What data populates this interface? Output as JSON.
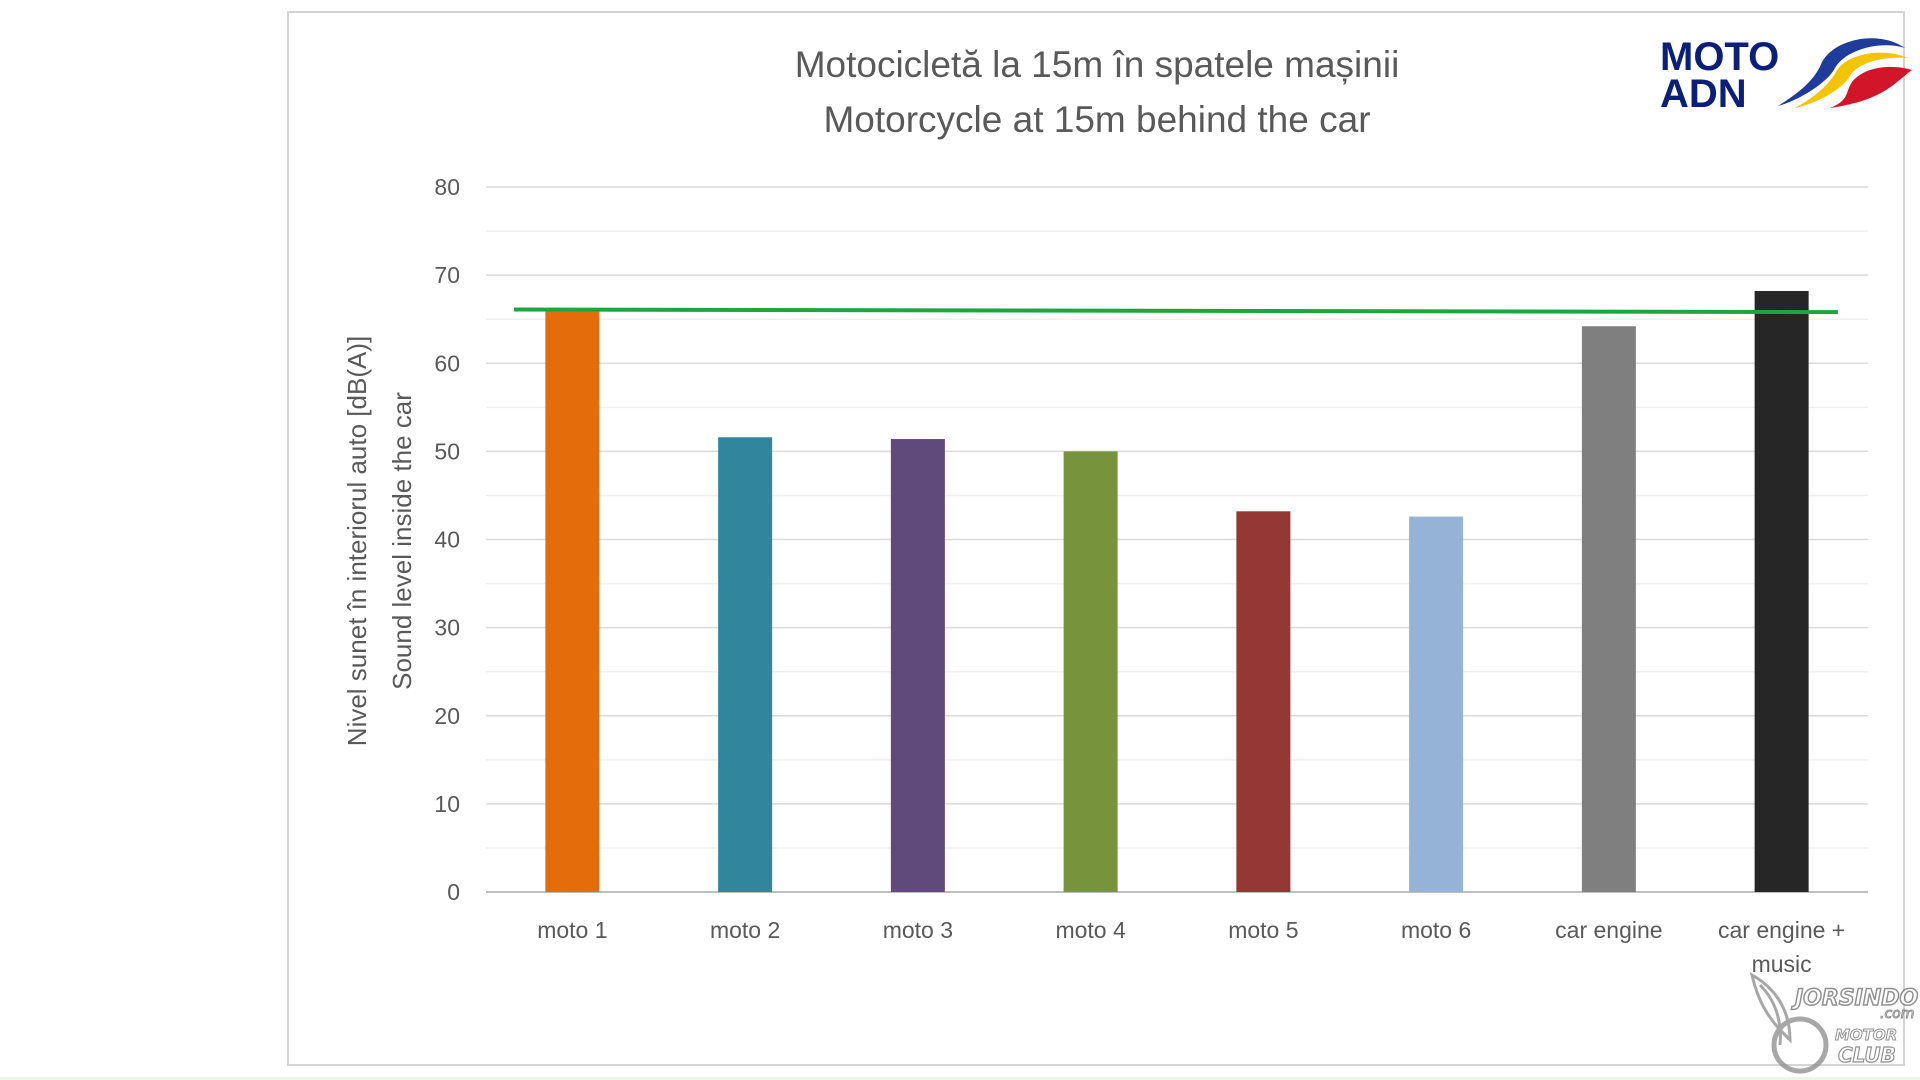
{
  "logo": {
    "line1": "MOTO",
    "line2": "ADN",
    "text_color": "#0b1f7a",
    "flag_colors": [
      "#1f3c9a",
      "#f2c500",
      "#d3152a"
    ]
  },
  "watermark": {
    "brand": "JORSINDO",
    "domain": ".com",
    "line2": "MOTOR",
    "line3": "CLUB"
  },
  "chart_data": {
    "type": "bar",
    "title": [
      "Motocicletă la 15m în spatele mașinii",
      "Motorcycle at 15m behind the car"
    ],
    "ylabel": [
      "Nivel sunet  în interiorul auto [dB(A)]",
      "Sound level inside the car"
    ],
    "xlabel": "",
    "categories": [
      "moto 1",
      "moto 2",
      "moto 3",
      "moto 4",
      "moto 5",
      "moto 6",
      "car engine",
      "car engine + music"
    ],
    "category_lines": [
      [
        "moto 1"
      ],
      [
        "moto 2"
      ],
      [
        "moto 3"
      ],
      [
        "moto 4"
      ],
      [
        "moto 5"
      ],
      [
        "moto 6"
      ],
      [
        "car engine"
      ],
      [
        "car engine +",
        "music"
      ]
    ],
    "values": [
      66,
      51.6,
      51.4,
      50,
      43.2,
      42.6,
      64.2,
      68.2
    ],
    "bar_colors": [
      "#e46c0a",
      "#31859c",
      "#604a7b",
      "#77933c",
      "#953735",
      "#95b3d7",
      "#7f7f7f",
      "#262626"
    ],
    "reference_line": {
      "value_start": 66.1,
      "value_end": 65.8,
      "color": "#1fa53f"
    },
    "ylim": [
      0,
      80
    ],
    "yticks": [
      0,
      10,
      20,
      30,
      40,
      50,
      60,
      70,
      80
    ],
    "minor_gridlines": true,
    "grid": true,
    "legend": "none"
  }
}
